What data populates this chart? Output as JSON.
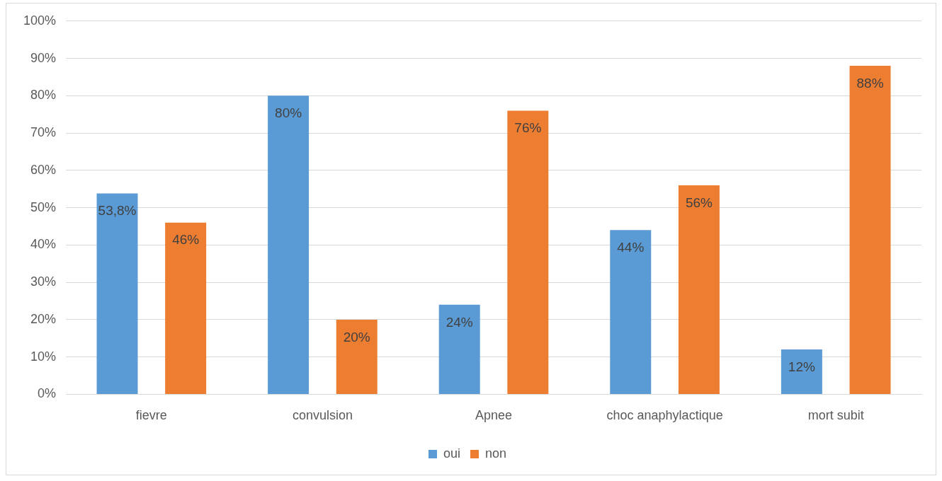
{
  "chart_data": {
    "type": "bar",
    "categories": [
      "fievre",
      "convulsion",
      "Apnee",
      "choc anaphylactique",
      "mort subit"
    ],
    "series": [
      {
        "name": "oui",
        "color": "#5b9bd5",
        "values": [
          53.8,
          80,
          24,
          44,
          12
        ],
        "value_labels": [
          "53,8%",
          "80%",
          "24%",
          "44%",
          "12%"
        ]
      },
      {
        "name": "non",
        "color": "#ed7d31",
        "values": [
          46,
          20,
          76,
          56,
          88
        ],
        "value_labels": [
          "46%",
          "20%",
          "76%",
          "56%",
          "88%"
        ]
      }
    ],
    "ylim": [
      0,
      100
    ],
    "yticks": [
      {
        "value": 0,
        "label": "0%"
      },
      {
        "value": 10,
        "label": "10%"
      },
      {
        "value": 20,
        "label": "20%"
      },
      {
        "value": 30,
        "label": "30%"
      },
      {
        "value": 40,
        "label": "40%"
      },
      {
        "value": 50,
        "label": "50%"
      },
      {
        "value": 60,
        "label": "60%"
      },
      {
        "value": 70,
        "label": "70%"
      },
      {
        "value": 80,
        "label": "80%"
      },
      {
        "value": 90,
        "label": "90%"
      },
      {
        "value": 100,
        "label": "100%"
      }
    ],
    "grid": "y",
    "legend": "bottom"
  }
}
